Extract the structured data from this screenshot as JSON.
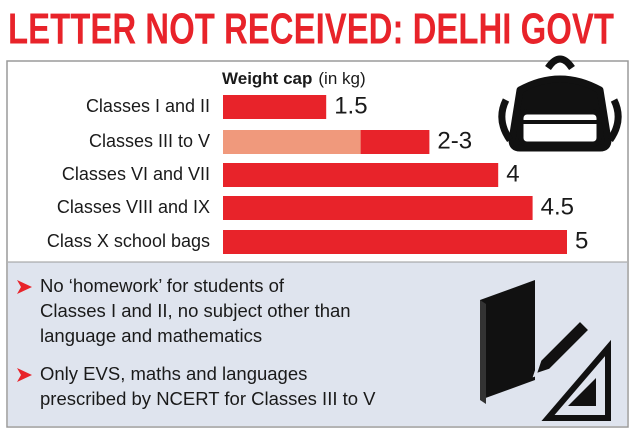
{
  "header": {
    "title": "LETTER NOT RECEIVED: DELHI GOVT"
  },
  "chart_data": {
    "type": "bar",
    "orientation": "horizontal",
    "axis_label": "Weight cap",
    "axis_unit": "(in kg)",
    "categories": [
      "Classes I and II",
      "Classes III to V",
      "Classes VI and VII",
      "Classes VIII and IX",
      "Class X school bags"
    ],
    "values": [
      1.5,
      [
        2,
        3
      ],
      4,
      4.5,
      5
    ],
    "value_labels": [
      null,
      "2-3",
      null,
      null,
      null
    ],
    "color": "#e8232a",
    "range_color": "#f0997c"
  },
  "notes": [
    [
      "No ‘homework’ for students of",
      "Classes I and II, no subject other than",
      "language and mathematics"
    ],
    [
      "Only EVS, maths and languages",
      "prescribed by NCERT for Classes III to V"
    ]
  ]
}
